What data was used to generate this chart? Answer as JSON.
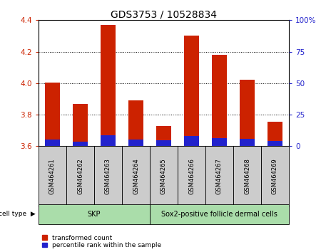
{
  "title": "GDS3753 / 10528834",
  "samples": [
    "GSM464261",
    "GSM464262",
    "GSM464263",
    "GSM464264",
    "GSM464265",
    "GSM464266",
    "GSM464267",
    "GSM464268",
    "GSM464269"
  ],
  "transformed_counts": [
    4.005,
    3.87,
    4.37,
    3.89,
    3.73,
    4.3,
    4.18,
    4.02,
    3.755
  ],
  "percentile_ranks": [
    5.0,
    3.5,
    8.5,
    5.5,
    4.5,
    8.0,
    6.5,
    6.0,
    4.0
  ],
  "baseline": 3.6,
  "ylim_left": [
    3.6,
    4.4
  ],
  "ylim_right": [
    0,
    100
  ],
  "yticks_left": [
    3.6,
    3.8,
    4.0,
    4.2,
    4.4
  ],
  "yticks_right": [
    0,
    25,
    50,
    75,
    100
  ],
  "bar_color_red": "#cc2200",
  "bar_color_blue": "#2222cc",
  "bar_width": 0.55,
  "cell_type_label": "cell type",
  "skp_label": "SKP",
  "skp_range": [
    0,
    3
  ],
  "sox2_label": "Sox2-positive follicle dermal cells",
  "sox2_range": [
    4,
    8
  ],
  "gray_color": "#cccccc",
  "green_color": "#aaddaa",
  "legend_items": [
    {
      "label": "transformed count",
      "color": "#cc2200"
    },
    {
      "label": "percentile rank within the sample",
      "color": "#2222cc"
    }
  ],
  "title_fontsize": 10,
  "tick_fontsize": 7.5,
  "sample_fontsize": 6,
  "cell_fontsize": 7
}
